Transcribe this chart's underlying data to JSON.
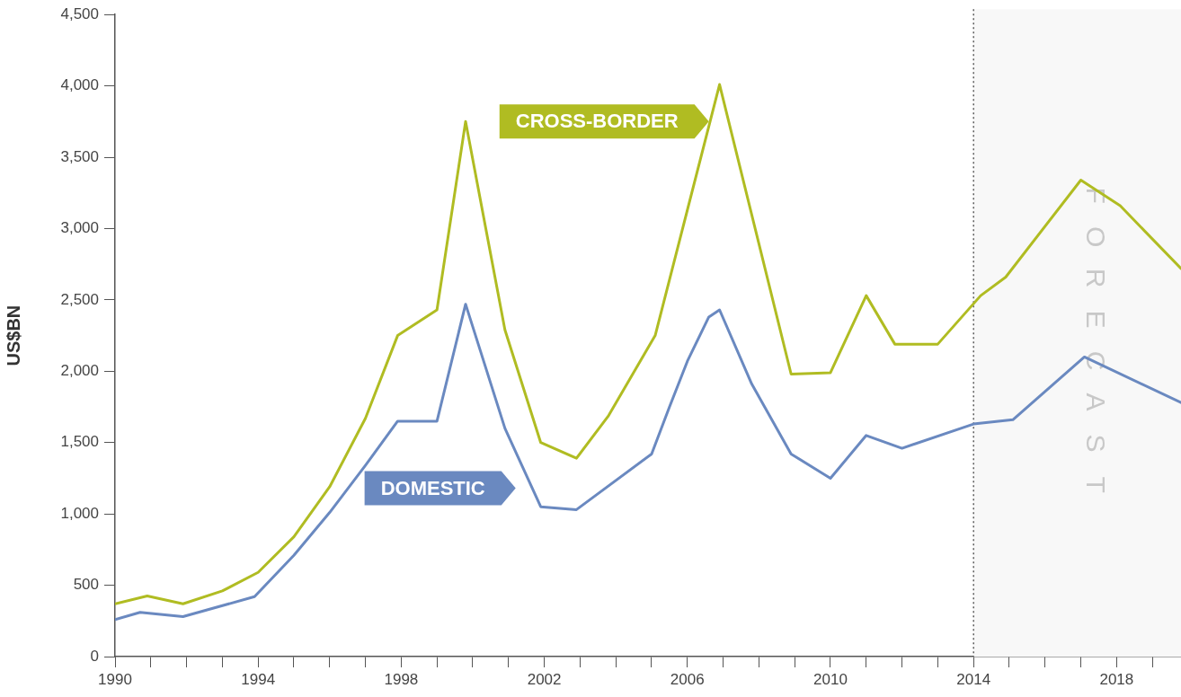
{
  "chart_data": {
    "type": "line",
    "ylabel": "US$BN",
    "xlim": [
      1990,
      2019.8
    ],
    "ylim": [
      0,
      4500
    ],
    "yticks": [
      {
        "value": 0,
        "label": "0"
      },
      {
        "value": 500,
        "label": "500"
      },
      {
        "value": 1000,
        "label": "1,000"
      },
      {
        "value": 1500,
        "label": "1,500"
      },
      {
        "value": 2000,
        "label": "2,000"
      },
      {
        "value": 2500,
        "label": "2,500"
      },
      {
        "value": 3000,
        "label": "3,000"
      },
      {
        "value": 3500,
        "label": "3,500"
      },
      {
        "value": 4000,
        "label": "4,000"
      },
      {
        "value": 4500,
        "label": "4,500"
      }
    ],
    "xticks": [
      1990,
      {
        "value": 1991,
        "label": null
      },
      {
        "value": 1992,
        "label": null
      },
      {
        "value": 1993,
        "label": null
      },
      1994,
      {
        "value": 1995,
        "label": null
      },
      {
        "value": 1996,
        "label": null
      },
      {
        "value": 1997,
        "label": null
      },
      1998,
      {
        "value": 1999,
        "label": null
      },
      {
        "value": 2000,
        "label": null
      },
      {
        "value": 2001,
        "label": null
      },
      2002,
      {
        "value": 2003,
        "label": null
      },
      {
        "value": 2004,
        "label": null
      },
      {
        "value": 2005,
        "label": null
      },
      2006,
      {
        "value": 2007,
        "label": null
      },
      {
        "value": 2008,
        "label": null
      },
      {
        "value": 2009,
        "label": null
      },
      2010,
      {
        "value": 2011,
        "label": null
      },
      {
        "value": 2012,
        "label": null
      },
      {
        "value": 2013,
        "label": null
      },
      2014,
      {
        "value": 2015,
        "label": null
      },
      {
        "value": 2016,
        "label": null
      },
      {
        "value": 2017,
        "label": null
      },
      2018,
      {
        "value": 2019,
        "label": null
      }
    ],
    "series": [
      {
        "name": "CROSS-BORDER",
        "color": "#b0bc22",
        "x": [
          1990,
          1990.9,
          1991.9,
          1993,
          1994,
          1995,
          1996,
          1997,
          1997.9,
          1999,
          1999.8,
          2000.9,
          2001.9,
          2002.9,
          2003.8,
          2005.1,
          2006.9,
          2008.9,
          2010,
          2011,
          2011.8,
          2013,
          2014.2,
          2014.9,
          2017,
          2018.1,
          2019.8
        ],
        "values": [
          370,
          425,
          370,
          460,
          590,
          840,
          1190,
          1670,
          2250,
          2430,
          3750,
          2290,
          1500,
          1390,
          1690,
          2250,
          4010,
          1980,
          1990,
          2530,
          2190,
          2190,
          2530,
          2660,
          3340,
          3160,
          2720
        ]
      },
      {
        "name": "DOMESTIC",
        "color": "#6a89c0",
        "x": [
          1990,
          1990.7,
          1991.9,
          1993.9,
          1995,
          1996,
          1997,
          1997.9,
          1999,
          1999.8,
          2000.9,
          2001.9,
          2002.9,
          2005,
          2005.5,
          2006,
          2006.6,
          2006.9,
          2007.8,
          2008.9,
          2010,
          2011,
          2012,
          2014,
          2015.1,
          2017.1,
          2019.8
        ],
        "values": [
          260,
          310,
          280,
          420,
          710,
          1010,
          1340,
          1650,
          1650,
          2470,
          1600,
          1050,
          1030,
          1420,
          1750,
          2070,
          2380,
          2430,
          1910,
          1420,
          1250,
          1550,
          1460,
          1630,
          1660,
          2100,
          1780
        ]
      }
    ],
    "ref_lines": [
      {
        "axis": "x",
        "value": 2014,
        "color": "#333333",
        "line_style": "dotted"
      }
    ],
    "bands": [
      {
        "axis": "x",
        "from": 2014,
        "to": 2019.8,
        "label": "FORECAST",
        "color": "#f8f8f8"
      }
    ],
    "legend": false,
    "grid": false,
    "marker": "none",
    "line_style": "solid"
  }
}
